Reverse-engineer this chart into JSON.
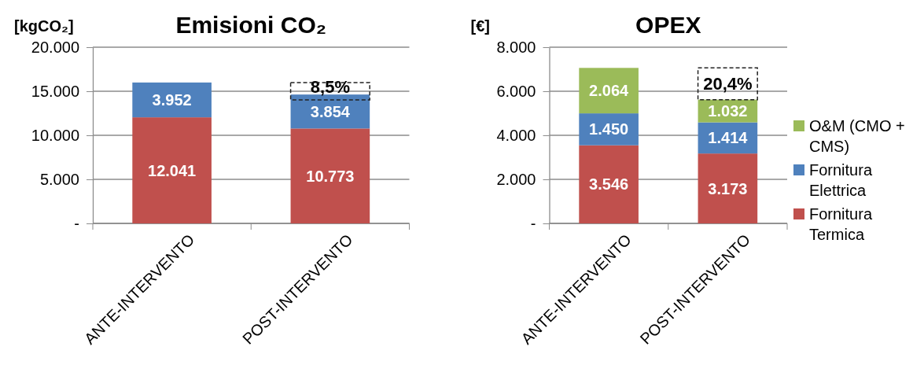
{
  "chart_data": [
    {
      "type": "bar",
      "title": "Emisioni CO₂",
      "ylabel": "[kgCO₂]",
      "categories": [
        "ANTE-INTERVENTO",
        "POST-INTERVENTO"
      ],
      "stacked": true,
      "series": [
        {
          "color": "#c0504d",
          "values": [
            12041,
            10773
          ],
          "value_labels": [
            "12.041",
            "10.773"
          ]
        },
        {
          "color": "#4f81bd",
          "values": [
            3952,
            3854
          ],
          "value_labels": [
            "3.952",
            "3.854"
          ]
        }
      ],
      "ylim": [
        0,
        20000
      ],
      "yticks": [
        {
          "value": 0,
          "label": "-"
        },
        {
          "value": 5000,
          "label": "5.000"
        },
        {
          "value": 10000,
          "label": "10.000"
        },
        {
          "value": 15000,
          "label": "15.000"
        },
        {
          "value": 20000,
          "label": "20.000"
        }
      ],
      "grid": "y",
      "legend": false,
      "annotations": [
        "8,5%"
      ]
    },
    {
      "type": "bar",
      "title": "OPEX",
      "ylabel": "[€]",
      "categories": [
        "ANTE-INTERVENTO",
        "POST-INTERVENTO"
      ],
      "stacked": true,
      "series": [
        {
          "name": "Fornitura Termica",
          "color": "#c0504d",
          "values": [
            3546,
            3173
          ],
          "value_labels": [
            "3.546",
            "3.173"
          ]
        },
        {
          "name": "Fornitura Elettrica",
          "color": "#4f81bd",
          "values": [
            1450,
            1414
          ],
          "value_labels": [
            "1.450",
            "1.414"
          ]
        },
        {
          "name": "O&M (CMO + CMS)",
          "color": "#9bbb59",
          "values": [
            2064,
            1032
          ],
          "value_labels": [
            "2.064",
            "1.032"
          ]
        }
      ],
      "ylim": [
        0,
        8000
      ],
      "yticks": [
        {
          "value": 0,
          "label": "-"
        },
        {
          "value": 2000,
          "label": "2.000"
        },
        {
          "value": 4000,
          "label": "4.000"
        },
        {
          "value": 6000,
          "label": "6.000"
        },
        {
          "value": 8000,
          "label": "8.000"
        }
      ],
      "grid": "y",
      "legend": "right",
      "annotations": [
        "20,4%"
      ]
    }
  ]
}
